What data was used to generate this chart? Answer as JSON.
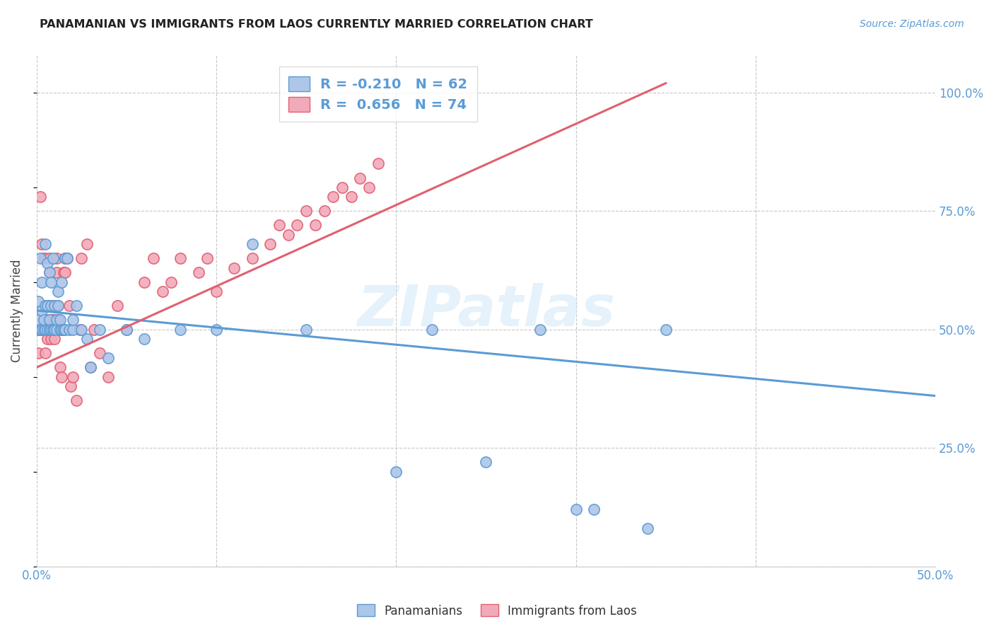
{
  "title": "PANAMANIAN VS IMMIGRANTS FROM LAOS CURRENTLY MARRIED CORRELATION CHART",
  "source": "Source: ZipAtlas.com",
  "ylabel": "Currently Married",
  "watermark": "ZIPatlas",
  "legend_blue_r": "-0.210",
  "legend_blue_n": "62",
  "legend_pink_r": "0.656",
  "legend_pink_n": "74",
  "blue_color": "#aec6e8",
  "pink_color": "#f2aabb",
  "blue_line_color": "#5b9bd5",
  "pink_line_color": "#e06070",
  "label_color": "#5b9bd5",
  "background_color": "#ffffff",
  "grid_color": "#c8c8c8",
  "blue_scatter_x": [
    0.001,
    0.001,
    0.002,
    0.002,
    0.003,
    0.003,
    0.003,
    0.004,
    0.004,
    0.005,
    0.005,
    0.005,
    0.006,
    0.006,
    0.006,
    0.007,
    0.007,
    0.007,
    0.008,
    0.008,
    0.008,
    0.009,
    0.009,
    0.009,
    0.01,
    0.01,
    0.011,
    0.011,
    0.012,
    0.012,
    0.013,
    0.013,
    0.014,
    0.014,
    0.015,
    0.015,
    0.016,
    0.016,
    0.017,
    0.018,
    0.02,
    0.02,
    0.022,
    0.025,
    0.028,
    0.03,
    0.035,
    0.04,
    0.05,
    0.06,
    0.08,
    0.1,
    0.12,
    0.15,
    0.2,
    0.22,
    0.25,
    0.28,
    0.3,
    0.31,
    0.34,
    0.35
  ],
  "blue_scatter_y": [
    0.52,
    0.56,
    0.5,
    0.65,
    0.5,
    0.54,
    0.6,
    0.5,
    0.52,
    0.68,
    0.55,
    0.5,
    0.64,
    0.5,
    0.55,
    0.62,
    0.5,
    0.52,
    0.5,
    0.55,
    0.6,
    0.5,
    0.65,
    0.5,
    0.5,
    0.55,
    0.5,
    0.52,
    0.55,
    0.58,
    0.5,
    0.52,
    0.5,
    0.6,
    0.5,
    0.5,
    0.65,
    0.5,
    0.65,
    0.5,
    0.5,
    0.52,
    0.55,
    0.5,
    0.48,
    0.42,
    0.5,
    0.44,
    0.5,
    0.48,
    0.5,
    0.5,
    0.68,
    0.5,
    0.2,
    0.5,
    0.22,
    0.5,
    0.12,
    0.12,
    0.08,
    0.5
  ],
  "pink_scatter_x": [
    0.001,
    0.001,
    0.002,
    0.002,
    0.003,
    0.003,
    0.004,
    0.004,
    0.005,
    0.005,
    0.005,
    0.006,
    0.006,
    0.006,
    0.007,
    0.007,
    0.007,
    0.008,
    0.008,
    0.008,
    0.009,
    0.009,
    0.009,
    0.01,
    0.01,
    0.01,
    0.011,
    0.011,
    0.012,
    0.012,
    0.013,
    0.013,
    0.014,
    0.014,
    0.015,
    0.016,
    0.016,
    0.017,
    0.018,
    0.019,
    0.02,
    0.022,
    0.024,
    0.025,
    0.028,
    0.03,
    0.032,
    0.035,
    0.04,
    0.045,
    0.05,
    0.06,
    0.065,
    0.07,
    0.075,
    0.08,
    0.09,
    0.095,
    0.1,
    0.11,
    0.12,
    0.13,
    0.135,
    0.14,
    0.145,
    0.15,
    0.155,
    0.16,
    0.165,
    0.17,
    0.175,
    0.18,
    0.185,
    0.19
  ],
  "pink_scatter_y": [
    0.5,
    0.45,
    0.78,
    0.5,
    0.68,
    0.5,
    0.65,
    0.5,
    0.65,
    0.5,
    0.45,
    0.5,
    0.52,
    0.48,
    0.65,
    0.62,
    0.55,
    0.52,
    0.5,
    0.48,
    0.5,
    0.55,
    0.52,
    0.5,
    0.52,
    0.48,
    0.65,
    0.62,
    0.55,
    0.52,
    0.42,
    0.5,
    0.4,
    0.5,
    0.62,
    0.62,
    0.65,
    0.65,
    0.55,
    0.38,
    0.4,
    0.35,
    0.5,
    0.65,
    0.68,
    0.42,
    0.5,
    0.45,
    0.4,
    0.55,
    0.5,
    0.6,
    0.65,
    0.58,
    0.6,
    0.65,
    0.62,
    0.65,
    0.58,
    0.63,
    0.65,
    0.68,
    0.72,
    0.7,
    0.72,
    0.75,
    0.72,
    0.75,
    0.78,
    0.8,
    0.78,
    0.82,
    0.8,
    0.85
  ],
  "xlim": [
    0.0,
    0.5
  ],
  "ylim": [
    0.0,
    1.08
  ],
  "xticks": [
    0.0,
    0.1,
    0.2,
    0.3,
    0.4,
    0.5
  ],
  "xtick_labels": [
    "0.0%",
    "",
    "",
    "",
    "",
    "50.0%"
  ],
  "yticks": [
    0.0,
    0.25,
    0.5,
    0.75,
    1.0
  ],
  "ytick_labels_right": [
    "",
    "25.0%",
    "50.0%",
    "75.0%",
    "100.0%"
  ],
  "blue_trend_x0": 0.0,
  "blue_trend_y0": 0.54,
  "blue_trend_x1": 0.5,
  "blue_trend_y1": 0.36,
  "pink_trend_x0": 0.0,
  "pink_trend_y0": 0.42,
  "pink_trend_x1": 0.35,
  "pink_trend_y1": 1.02
}
